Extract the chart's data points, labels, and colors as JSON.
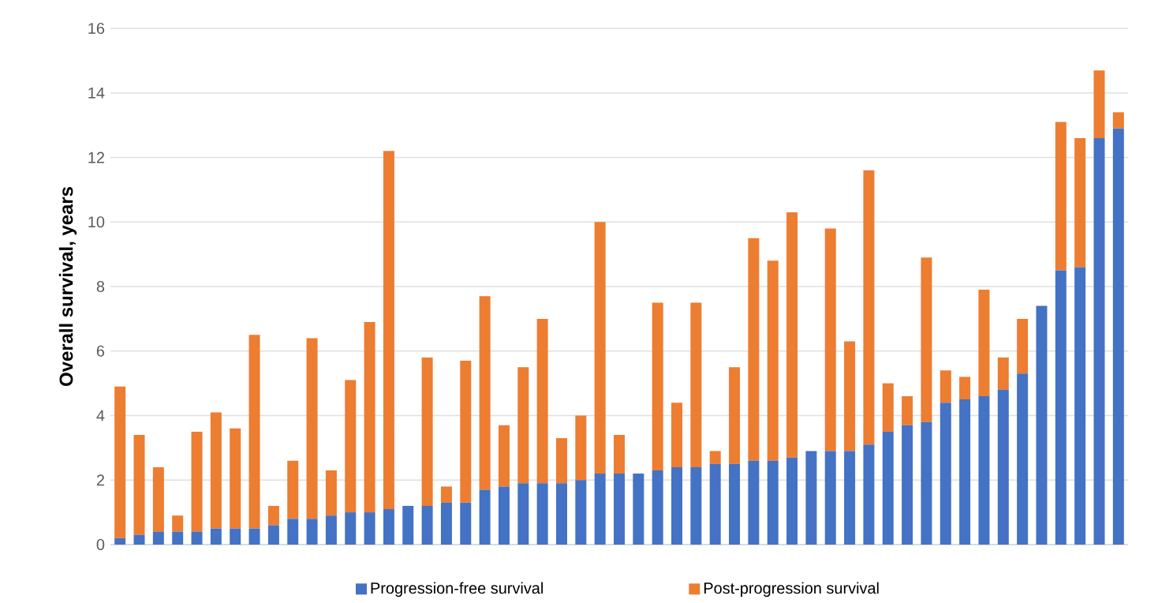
{
  "chart_data": {
    "type": "bar",
    "stacked": true,
    "ylabel": "Overall survival, years",
    "categories": [
      null,
      null,
      null,
      null,
      null,
      null,
      null,
      null,
      null,
      null,
      null,
      null,
      null,
      null,
      null,
      null,
      null,
      null,
      null,
      null,
      null,
      null,
      null,
      null,
      null,
      null,
      null,
      null,
      null,
      null,
      null,
      null,
      null,
      null,
      null,
      null,
      null,
      null,
      null,
      null,
      null,
      null,
      null,
      null,
      null,
      null,
      null,
      null,
      null,
      null,
      null,
      null,
      null
    ],
    "series": [
      {
        "name": "Progression-free survival",
        "color": "#4472c4",
        "values": [
          0.2,
          0.3,
          0.4,
          0.4,
          0.4,
          0.5,
          0.5,
          0.5,
          0.6,
          0.8,
          0.8,
          0.9,
          1.0,
          1.0,
          1.1,
          1.2,
          1.2,
          1.3,
          1.3,
          1.7,
          1.8,
          1.9,
          1.9,
          1.9,
          2.0,
          2.2,
          2.2,
          2.2,
          2.3,
          2.4,
          2.4,
          2.5,
          2.5,
          2.6,
          2.6,
          2.7,
          2.9,
          2.9,
          2.9,
          3.1,
          3.5,
          3.7,
          3.8,
          4.4,
          4.5,
          4.6,
          4.8,
          5.3,
          7.4,
          8.5,
          8.6,
          12.6,
          12.9
        ]
      },
      {
        "name": "Post-progression survival",
        "color": "#ed7d31",
        "values": [
          4.7,
          3.1,
          2.0,
          0.5,
          3.1,
          3.6,
          3.1,
          6.0,
          0.6,
          1.8,
          5.6,
          1.4,
          4.1,
          5.9,
          11.1,
          0,
          4.6,
          0.5,
          4.4,
          6.0,
          1.9,
          3.6,
          5.1,
          1.4,
          2.0,
          7.8,
          1.2,
          0,
          5.2,
          2.0,
          5.1,
          0.4,
          3.0,
          6.9,
          6.2,
          7.6,
          0,
          6.9,
          3.4,
          8.5,
          1.5,
          0.9,
          5.1,
          1.0,
          0.7,
          3.3,
          1.0,
          1.7,
          0,
          4.6,
          4.0,
          2.1,
          0.5
        ]
      }
    ],
    "ylim": [
      0,
      16
    ],
    "yticks": [
      0,
      2,
      4,
      6,
      8,
      10,
      12,
      14,
      16
    ],
    "grid": "y",
    "legend": "bottom"
  }
}
